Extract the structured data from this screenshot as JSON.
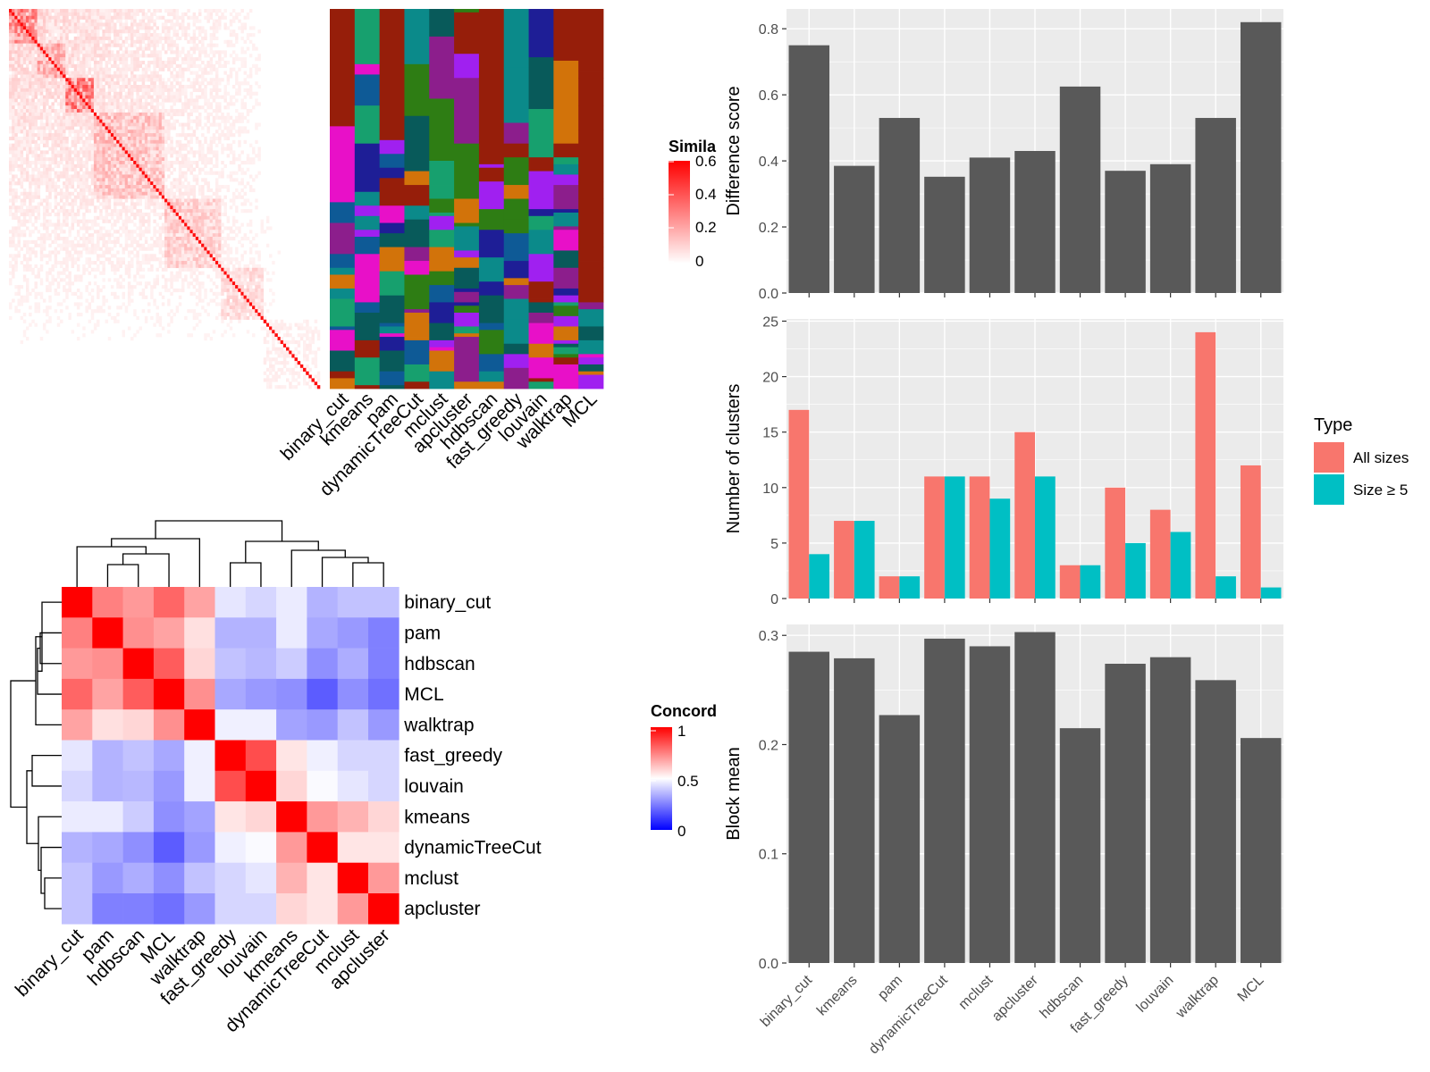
{
  "similarity_heatmap": {
    "legend_title": "Simila",
    "legend_ticks": [
      "0.6",
      "0.4",
      "0.2",
      "0"
    ],
    "methods": [
      "binary_cut",
      "kmeans",
      "pam",
      "dynamicTreeCut",
      "mclust",
      "apcluster",
      "hdbscan",
      "fast_greedy",
      "louvain",
      "walktrap",
      "MCL"
    ]
  },
  "concordance_heatmap": {
    "legend_title": "Concord",
    "legend_ticks": [
      "1",
      "0.5",
      "0"
    ],
    "order": [
      "binary_cut",
      "pam",
      "hdbscan",
      "MCL",
      "walktrap",
      "fast_greedy",
      "louvain",
      "kmeans",
      "dynamicTreeCut",
      "mclust",
      "apcluster"
    ]
  },
  "colors": {
    "bar": "#595959",
    "all_sizes": "#F8766D",
    "size5": "#00BFC4",
    "panel_bg": "#EBEBEB",
    "heat_high": "#FF0000",
    "heat_mid": "#FFFFFF",
    "heat_low": "#0000FF"
  },
  "chart_data": [
    {
      "type": "heatmap",
      "title": "",
      "legend_title": "Concord",
      "rows": [
        "binary_cut",
        "pam",
        "hdbscan",
        "MCL",
        "walktrap",
        "fast_greedy",
        "louvain",
        "kmeans",
        "dynamicTreeCut",
        "mclust",
        "apcluster"
      ],
      "cols": [
        "binary_cut",
        "pam",
        "hdbscan",
        "MCL",
        "walktrap",
        "fast_greedy",
        "louvain",
        "kmeans",
        "dynamicTreeCut",
        "mclust",
        "apcluster"
      ],
      "values": [
        [
          1.0,
          0.75,
          0.7,
          0.8,
          0.68,
          0.45,
          0.42,
          0.46,
          0.35,
          0.38,
          0.38
        ],
        [
          0.75,
          1.0,
          0.72,
          0.68,
          0.56,
          0.35,
          0.35,
          0.46,
          0.33,
          0.3,
          0.25
        ],
        [
          0.7,
          0.72,
          1.0,
          0.82,
          0.58,
          0.38,
          0.36,
          0.4,
          0.28,
          0.34,
          0.25
        ],
        [
          0.8,
          0.68,
          0.82,
          1.0,
          0.72,
          0.33,
          0.3,
          0.28,
          0.18,
          0.28,
          0.22
        ],
        [
          0.68,
          0.56,
          0.58,
          0.72,
          1.0,
          0.47,
          0.47,
          0.32,
          0.3,
          0.38,
          0.3
        ],
        [
          0.45,
          0.35,
          0.38,
          0.33,
          0.47,
          1.0,
          0.85,
          0.55,
          0.47,
          0.42,
          0.42
        ],
        [
          0.42,
          0.35,
          0.36,
          0.3,
          0.47,
          0.85,
          1.0,
          0.58,
          0.49,
          0.45,
          0.42
        ],
        [
          0.46,
          0.46,
          0.4,
          0.28,
          0.32,
          0.55,
          0.58,
          1.0,
          0.7,
          0.65,
          0.58
        ],
        [
          0.35,
          0.33,
          0.28,
          0.18,
          0.3,
          0.47,
          0.49,
          0.7,
          1.0,
          0.55,
          0.55
        ],
        [
          0.38,
          0.3,
          0.34,
          0.28,
          0.38,
          0.42,
          0.45,
          0.65,
          0.55,
          1.0,
          0.7
        ],
        [
          0.38,
          0.25,
          0.25,
          0.22,
          0.3,
          0.42,
          0.42,
          0.58,
          0.55,
          0.7,
          1.0
        ]
      ],
      "legend_ticks": [
        "1",
        "0.5",
        "0"
      ]
    },
    {
      "type": "bar",
      "title": "",
      "xlabel": "",
      "ylabel": "Difference score",
      "categories": [
        "binary_cut",
        "kmeans",
        "pam",
        "dynamicTreeCut",
        "mclust",
        "apcluster",
        "hdbscan",
        "fast_greedy",
        "louvain",
        "walktrap",
        "MCL"
      ],
      "values": [
        0.75,
        0.385,
        0.53,
        0.352,
        0.41,
        0.43,
        0.625,
        0.37,
        0.39,
        0.53,
        0.82
      ],
      "ylim": [
        0,
        0.86
      ],
      "yticks": [
        "0.0",
        "0.2",
        "0.4",
        "0.6",
        "0.8"
      ],
      "grid": true
    },
    {
      "type": "bar",
      "title": "",
      "xlabel": "",
      "ylabel": "Number of clusters",
      "legend_title": "Type",
      "legend_position": "right",
      "categories": [
        "binary_cut",
        "kmeans",
        "pam",
        "dynamicTreeCut",
        "mclust",
        "apcluster",
        "hdbscan",
        "fast_greedy",
        "louvain",
        "walktrap",
        "MCL"
      ],
      "series": [
        {
          "name": "All sizes",
          "values": [
            17,
            7,
            2,
            11,
            11,
            15,
            3,
            10,
            8,
            24,
            12
          ]
        },
        {
          "name": "Size ≥ 5",
          "values": [
            4,
            7,
            2,
            11,
            9,
            11,
            3,
            5,
            6,
            2,
            1
          ]
        }
      ],
      "ylim": [
        0,
        25.2
      ],
      "yticks": [
        "0",
        "5",
        "10",
        "15",
        "20",
        "25"
      ],
      "grid": true
    },
    {
      "type": "bar",
      "title": "",
      "xlabel": "",
      "ylabel": "Block mean",
      "categories": [
        "binary_cut",
        "kmeans",
        "pam",
        "dynamicTreeCut",
        "mclust",
        "apcluster",
        "hdbscan",
        "fast_greedy",
        "louvain",
        "walktrap",
        "MCL"
      ],
      "values": [
        0.285,
        0.279,
        0.227,
        0.297,
        0.29,
        0.303,
        0.215,
        0.274,
        0.28,
        0.259,
        0.206
      ],
      "ylim": [
        0,
        0.31
      ],
      "yticks": [
        "0.0",
        "0.1",
        "0.2",
        "0.3"
      ],
      "grid": true
    }
  ]
}
